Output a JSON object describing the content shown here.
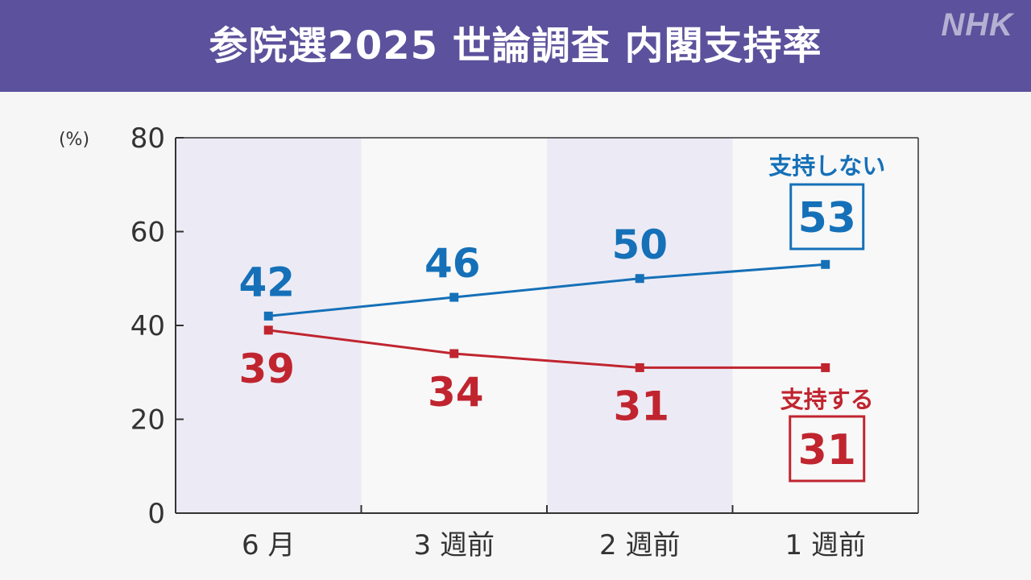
{
  "header": {
    "title": "参院選2025 世論調査 内閣支持率",
    "logo": "NHK",
    "background": "#5c519c"
  },
  "chart_data": {
    "type": "line",
    "title": "参院選2025 世論調査 内閣支持率",
    "ylabel": "(%)",
    "xlabel": "",
    "categories": [
      "6 月",
      "3 週前",
      "2 週前",
      "1 週前"
    ],
    "ylim": [
      0,
      80
    ],
    "yticks": [
      0,
      20,
      40,
      60,
      80
    ],
    "grid": false,
    "shaded_columns": [
      0,
      2
    ],
    "series": [
      {
        "name": "支持しない",
        "values": [
          42,
          46,
          50,
          53
        ],
        "color": "#1570b8",
        "final_value": "53"
      },
      {
        "name": "支持する",
        "values": [
          39,
          34,
          31,
          31
        ],
        "color": "#c0252f",
        "final_value": "31"
      }
    ]
  }
}
